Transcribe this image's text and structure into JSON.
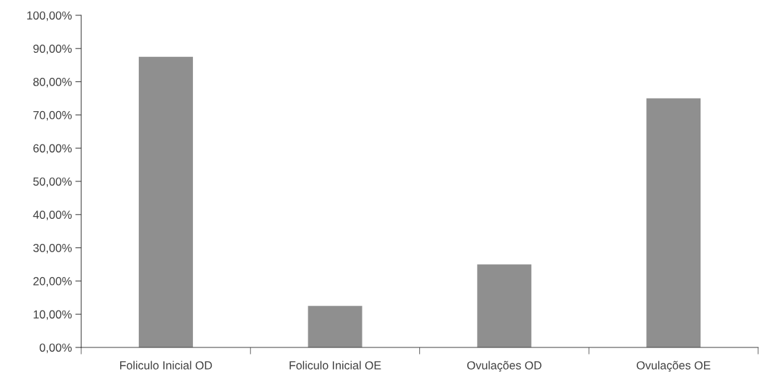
{
  "chart_data": {
    "type": "bar",
    "categories": [
      "Foliculo Inicial OD",
      "Foliculo Inicial OE",
      "Ovulações OD",
      "Ovulações OE"
    ],
    "values": [
      87.5,
      12.5,
      25,
      75
    ],
    "color": "#8f8f8f",
    "ylim": [
      0,
      100
    ],
    "yticks": [
      {
        "value": 0,
        "label": "0,00%"
      },
      {
        "value": 10,
        "label": "10,00%"
      },
      {
        "value": 20,
        "label": "20,00%"
      },
      {
        "value": 30,
        "label": "30,00%"
      },
      {
        "value": 40,
        "label": "40,00%"
      },
      {
        "value": 50,
        "label": "50,00%"
      },
      {
        "value": 60,
        "label": "60,00%"
      },
      {
        "value": 70,
        "label": "70,00%"
      },
      {
        "value": 80,
        "label": "80,00%"
      },
      {
        "value": 90,
        "label": "90,00%"
      },
      {
        "value": 100,
        "label": "100,00%"
      }
    ],
    "grid": false,
    "legend": false
  }
}
